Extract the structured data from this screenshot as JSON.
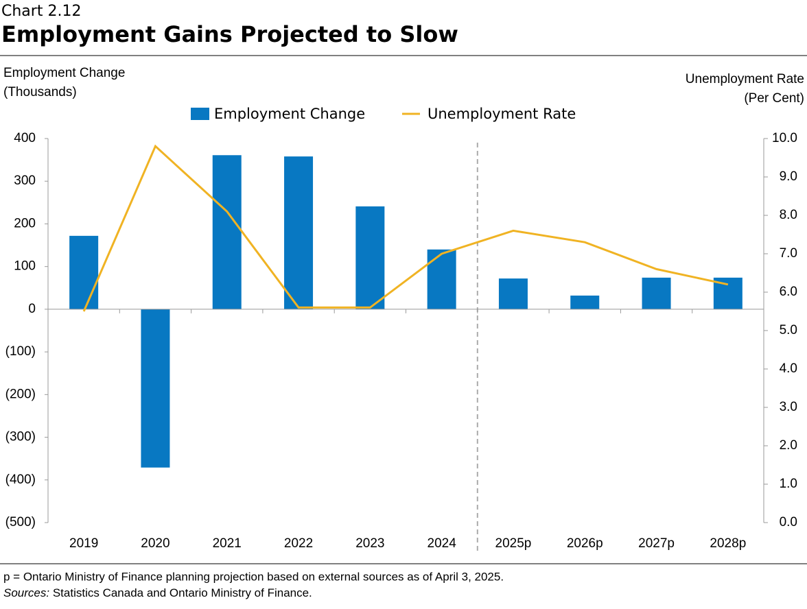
{
  "chart_data": {
    "type": "bar_line",
    "label": "Chart 2.12",
    "title": "Employment Gains Projected to Slow",
    "y_label": [
      "Employment Change",
      "(Thousands)"
    ],
    "y2_label": [
      "Unemployment Rate",
      "(Per Cent)"
    ],
    "categories": [
      "2019",
      "2020",
      "2021",
      "2022",
      "2023",
      "2024",
      "2025p",
      "2026p",
      "2027p",
      "2028p"
    ],
    "series": [
      {
        "name": "Employment Change",
        "type": "bar",
        "color": "#0878c2",
        "values": [
          172,
          -371,
          361,
          358,
          241,
          140,
          72,
          32,
          74,
          74
        ]
      },
      {
        "name": "Unemployment Rate",
        "type": "line",
        "axis": "y2",
        "color": "#f0b323",
        "values": [
          5.5,
          9.8,
          8.1,
          5.6,
          5.6,
          7.0,
          7.6,
          7.3,
          6.6,
          6.2
        ]
      }
    ],
    "ylim": [
      -500,
      400
    ],
    "yticks": [
      {
        "value": -500,
        "label": "(500)"
      },
      {
        "value": -400,
        "label": "(400)"
      },
      {
        "value": -300,
        "label": "(300)"
      },
      {
        "value": -200,
        "label": "(200)"
      },
      {
        "value": -100,
        "label": "(100)"
      },
      0,
      100,
      200,
      300,
      400
    ],
    "y2lim": [
      0,
      10
    ],
    "y2ticks": [
      {
        "value": 0,
        "label": "0.0"
      },
      {
        "value": 1,
        "label": "1.0"
      },
      {
        "value": 2,
        "label": "2.0"
      },
      {
        "value": 3,
        "label": "3.0"
      },
      {
        "value": 4,
        "label": "4.0"
      },
      {
        "value": 5,
        "label": "5.0"
      },
      {
        "value": 6,
        "label": "6.0"
      },
      {
        "value": 7,
        "label": "7.0"
      },
      {
        "value": 8,
        "label": "8.0"
      },
      {
        "value": 9,
        "label": "9.0"
      },
      {
        "value": 10,
        "label": "10.0"
      }
    ],
    "note": "p = Ontario Ministry of Finance planning projection based on external sources as of April 3, 2025.",
    "sources_label": "Sources:",
    "sources": "Statistics Canada and Ontario Ministry of Finance."
  }
}
